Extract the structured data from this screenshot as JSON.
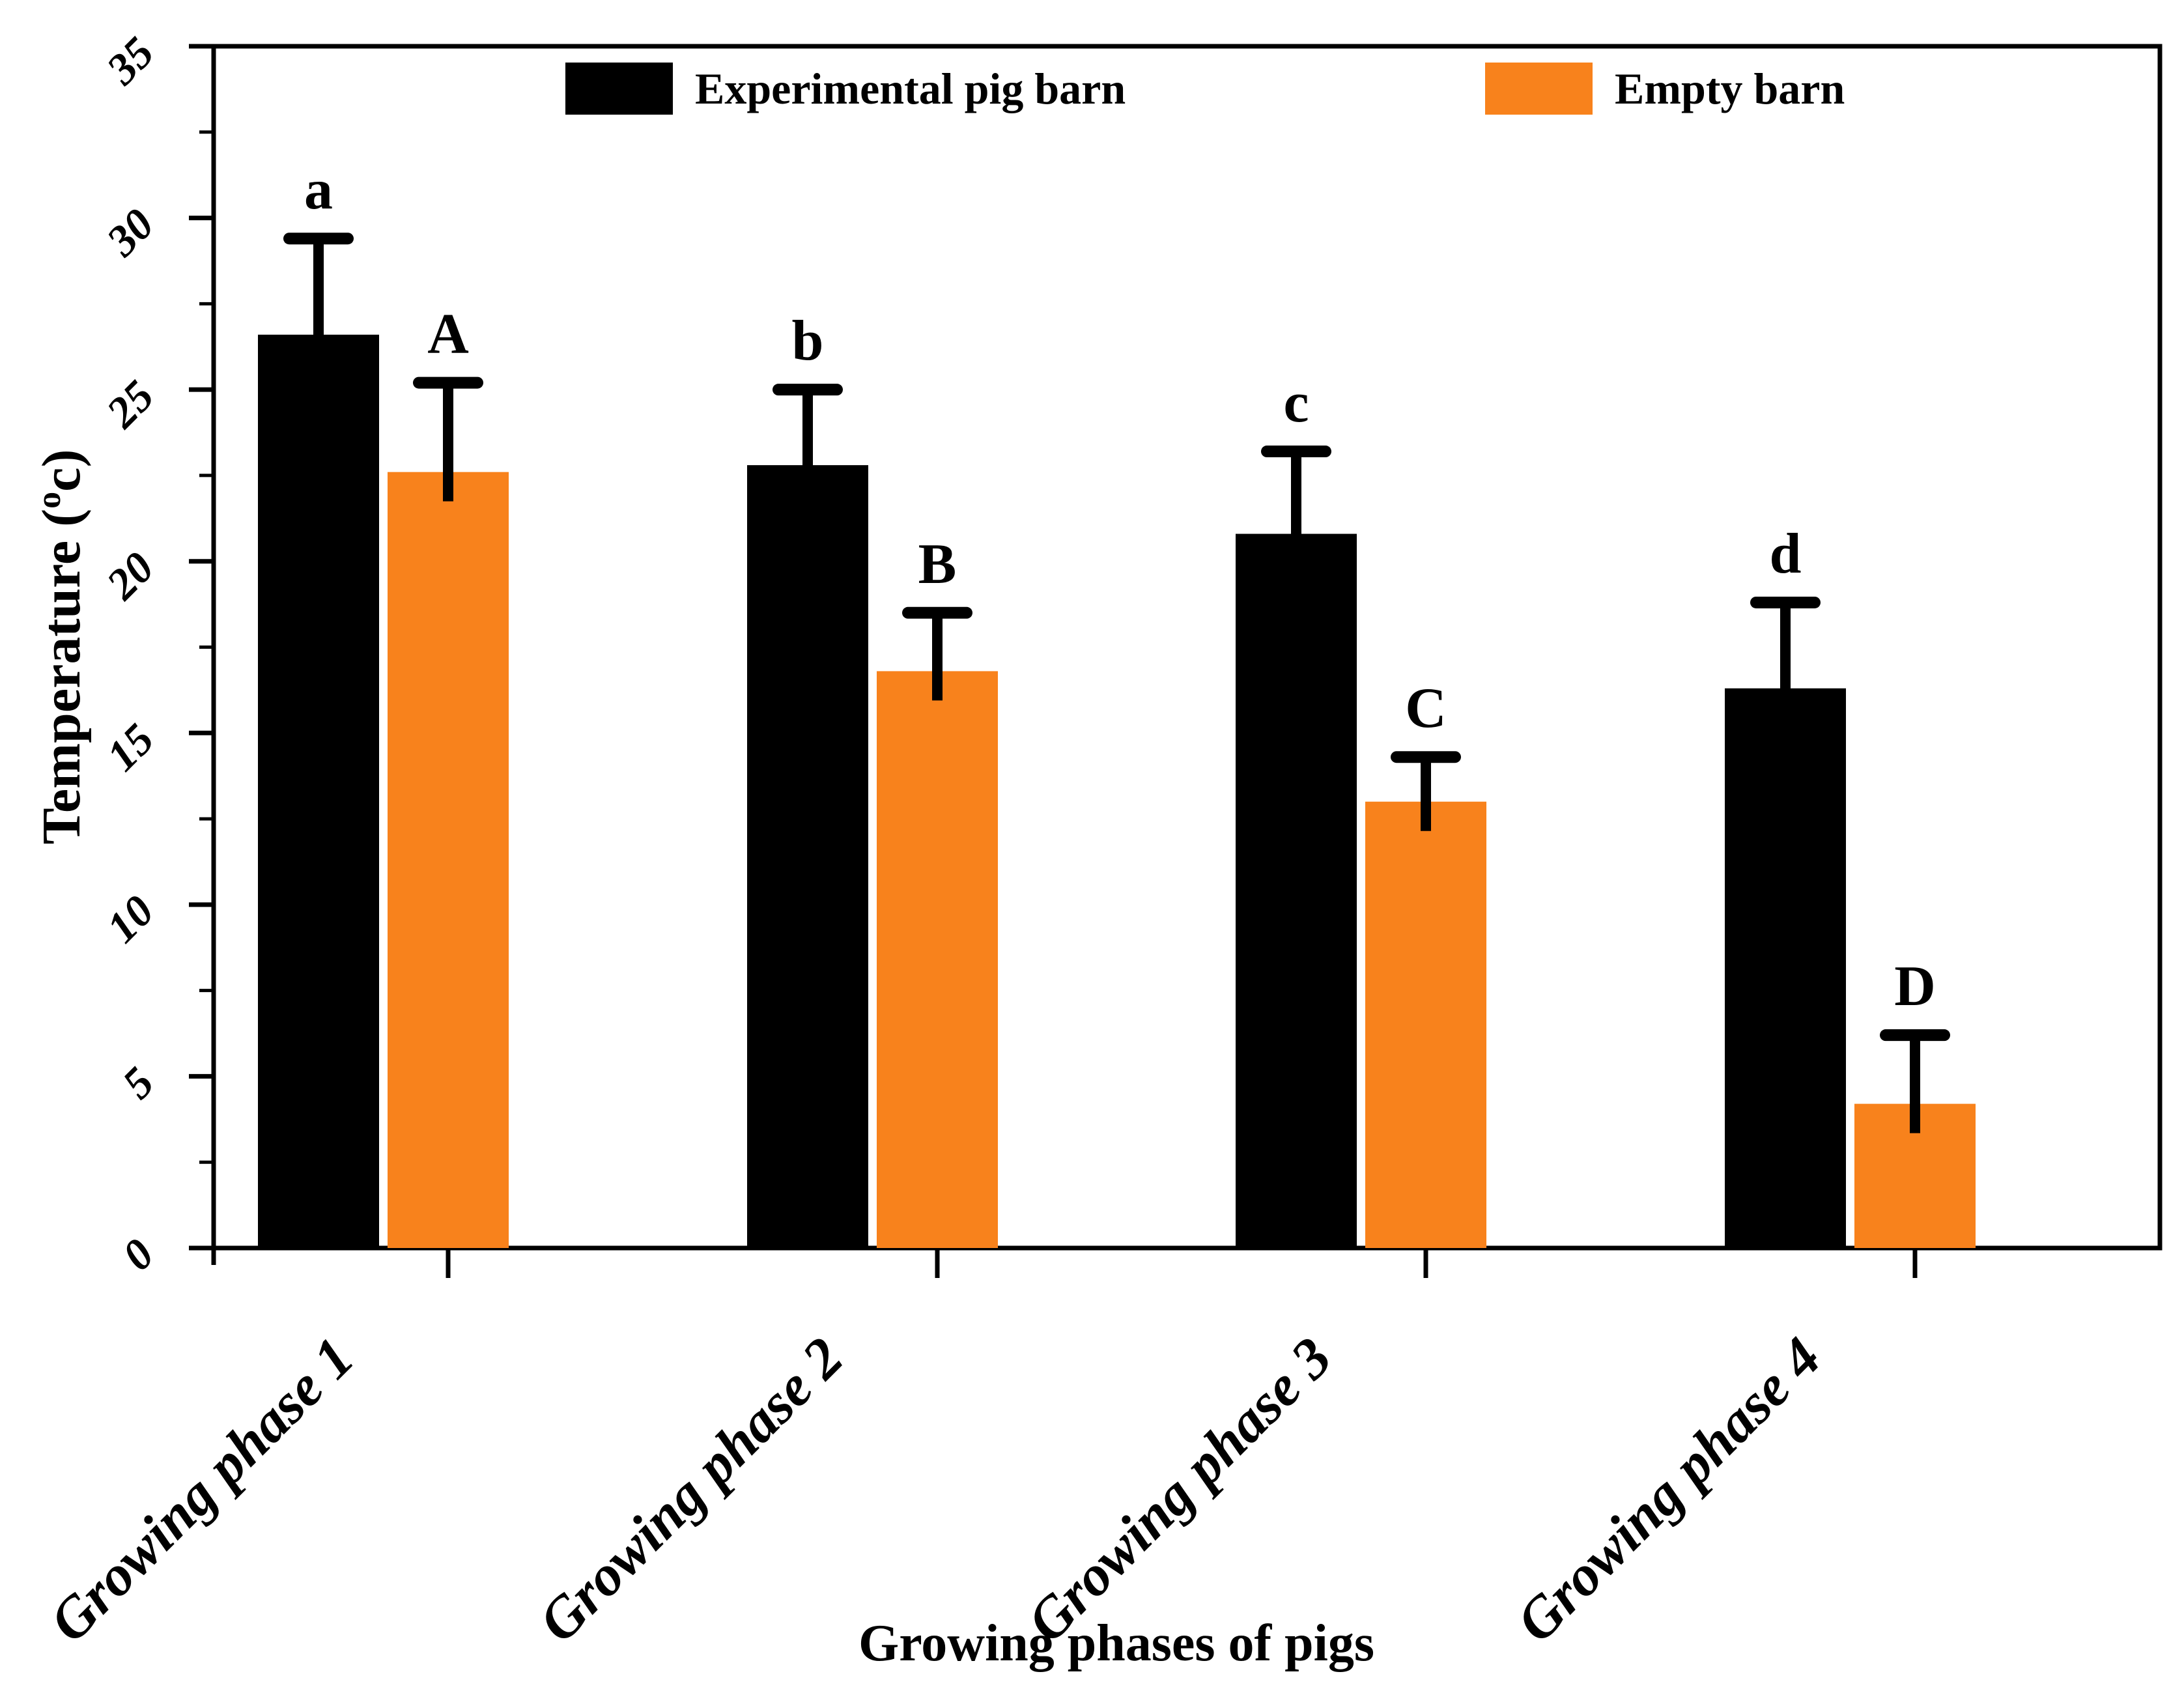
{
  "figure": {
    "background": "#ffffff"
  },
  "legend": {
    "items": [
      {
        "label": "Experimental pig barn",
        "color": "#000000"
      },
      {
        "label": "Empty barn",
        "color": "#F8821C"
      }
    ]
  },
  "chart_data": {
    "type": "bar",
    "title": "",
    "xlabel": "Growing phases of pigs",
    "ylabel": "Temperature (⁰c)",
    "ylabel_parts": {
      "pre": "Temperature (",
      "sup": "o",
      "rest": "c)"
    },
    "categories": [
      "Growing phase 1",
      "Growing phase 2",
      "Growing phase 3",
      "Growing phase 4"
    ],
    "series": [
      {
        "name": "Experimental pig barn",
        "color": "#000000",
        "values": [
          26.6,
          22.8,
          20.8,
          16.3
        ],
        "errors_plus": [
          2.8,
          2.2,
          2.4,
          2.5
        ],
        "bar_labels": [
          "a",
          "b",
          "c",
          "d"
        ]
      },
      {
        "name": "Empty barn",
        "color": "#F8821C",
        "values": [
          22.6,
          16.8,
          13.0,
          4.2
        ],
        "errors_plus": [
          2.6,
          1.7,
          1.3,
          2.0
        ],
        "bar_labels": [
          "A",
          "B",
          "C",
          "D"
        ]
      }
    ],
    "ylim": [
      0,
      35
    ],
    "yticks": [
      0,
      5,
      10,
      15,
      20,
      25,
      30,
      35
    ],
    "y_minor_tick_step": 2.5,
    "grid": "off",
    "legend_position": "top inside plot",
    "error_bars": "upper only, capped",
    "tick_label_rotation_deg": -45
  }
}
